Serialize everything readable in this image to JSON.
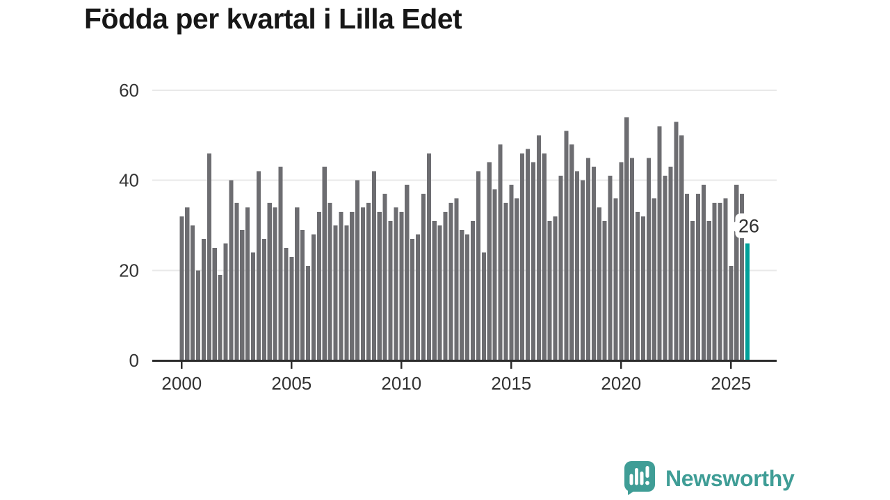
{
  "title": "Födda per kvartal i Lilla Edet",
  "chart_data": {
    "type": "bar",
    "title": "Födda per kvartal i Lilla Edet",
    "x_unit": "quarter",
    "start_year": 2000,
    "quarters_range": "2000 Q1 – 2025 Q4",
    "values": [
      32,
      34,
      30,
      20,
      27,
      46,
      25,
      19,
      26,
      40,
      35,
      29,
      34,
      24,
      42,
      27,
      35,
      34,
      43,
      25,
      23,
      34,
      29,
      21,
      28,
      33,
      43,
      35,
      30,
      33,
      30,
      33,
      40,
      34,
      35,
      42,
      33,
      37,
      31,
      34,
      33,
      39,
      27,
      28,
      37,
      46,
      31,
      30,
      33,
      35,
      36,
      29,
      28,
      31,
      42,
      24,
      44,
      38,
      48,
      35,
      39,
      36,
      46,
      47,
      44,
      50,
      46,
      31,
      32,
      41,
      51,
      48,
      42,
      40,
      45,
      43,
      34,
      31,
      41,
      36,
      44,
      54,
      45,
      33,
      32,
      45,
      36,
      52,
      41,
      43,
      53,
      50,
      37,
      31,
      37,
      39,
      31,
      35,
      35,
      36,
      21,
      39,
      37,
      26
    ],
    "x_tick_labels": [
      "2000",
      "2005",
      "2010",
      "2015",
      "2020",
      "2025"
    ],
    "y_tick_labels": [
      "0",
      "20",
      "40",
      "60"
    ],
    "ylim": [
      0,
      60
    ],
    "grid": "horizontal",
    "legend": "none",
    "bar_color": "#6d6d71",
    "axis_color": "#2b2b2b",
    "grid_color": "#e9e9e9",
    "tick_label_color": "#333333",
    "highlight_last": {
      "label": "26",
      "value": 26,
      "color": "#00a099"
    }
  },
  "annotation": {
    "latest_value_label": "26"
  },
  "branding": {
    "logo_text": "Newsworthy",
    "logo_color": "#3f9d96"
  }
}
